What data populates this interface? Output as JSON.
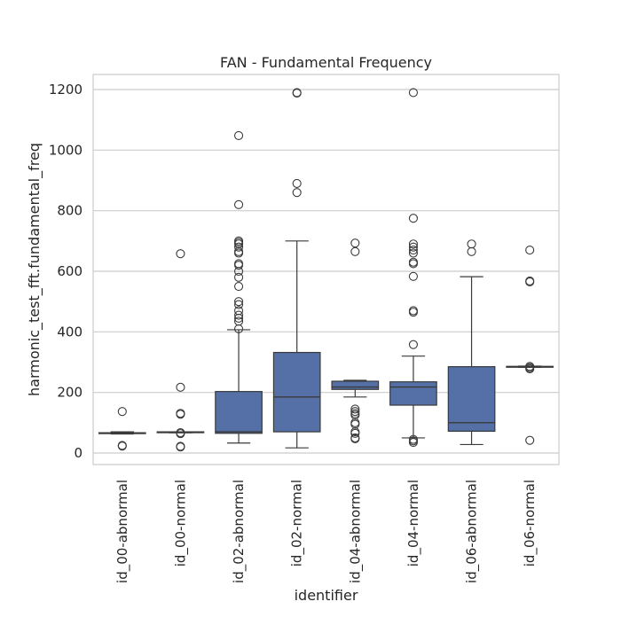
{
  "chart_data": {
    "type": "box",
    "title": "FAN - Fundamental Frequency",
    "xlabel": "identifier",
    "ylabel": "harmonic_test_fft.fundamental_freq",
    "ylim": [
      -40,
      1250
    ],
    "yticks": [
      0,
      200,
      400,
      600,
      800,
      1000,
      1200
    ],
    "ytick_labels": [
      "0",
      "200",
      "400",
      "600",
      "800",
      "1000",
      "1200"
    ],
    "grid": "horizontal",
    "colors": {
      "box_fill": "#5470a6",
      "line": "#3a3a3a",
      "grid": "#cccccc",
      "frame": "#cccccc"
    },
    "categories": [
      "id_00-abnormal",
      "id_00-normal",
      "id_02-abnormal",
      "id_02-normal",
      "id_04-abnormal",
      "id_04-normal",
      "id_06-abnormal",
      "id_06-normal"
    ],
    "boxes": [
      {
        "whisker_low": 63,
        "q1": 65,
        "median": 66,
        "q3": 67,
        "whisker_high": 70,
        "outliers": [
          23,
          25,
          137
        ]
      },
      {
        "whisker_low": 67,
        "q1": 68,
        "median": 69,
        "q3": 70,
        "whisker_high": 70,
        "outliers": [
          20,
          22,
          64,
          67,
          128,
          131,
          217,
          658
        ]
      },
      {
        "whisker_low": 33,
        "q1": 65,
        "median": 70,
        "q3": 203,
        "whisker_high": 407,
        "outliers": [
          410,
          435,
          445,
          455,
          470,
          490,
          500,
          550,
          580,
          600,
          620,
          625,
          660,
          665,
          680,
          690,
          695,
          700,
          820,
          1048
        ]
      },
      {
        "whisker_low": 17,
        "q1": 70,
        "median": 185,
        "q3": 332,
        "whisker_high": 700,
        "outliers": [
          860,
          890,
          1188,
          1190
        ]
      },
      {
        "whisker_low": 185,
        "q1": 210,
        "median": 218,
        "q3": 237,
        "whisker_high": 240,
        "outliers": [
          47,
          50,
          65,
          70,
          95,
          100,
          125,
          130,
          137,
          145,
          665,
          693
        ]
      },
      {
        "whisker_low": 50,
        "q1": 158,
        "median": 218,
        "q3": 235,
        "whisker_high": 320,
        "outliers": [
          35,
          40,
          45,
          358,
          465,
          470,
          583,
          625,
          630,
          660,
          670,
          680,
          690,
          775,
          1190
        ]
      },
      {
        "whisker_low": 28,
        "q1": 72,
        "median": 100,
        "q3": 285,
        "whisker_high": 582,
        "outliers": [
          665,
          690
        ]
      },
      {
        "whisker_low": 283,
        "q1": 284,
        "median": 285,
        "q3": 286,
        "whisker_high": 287,
        "outliers": [
          42,
          278,
          282,
          286,
          565,
          568,
          670
        ]
      }
    ]
  }
}
